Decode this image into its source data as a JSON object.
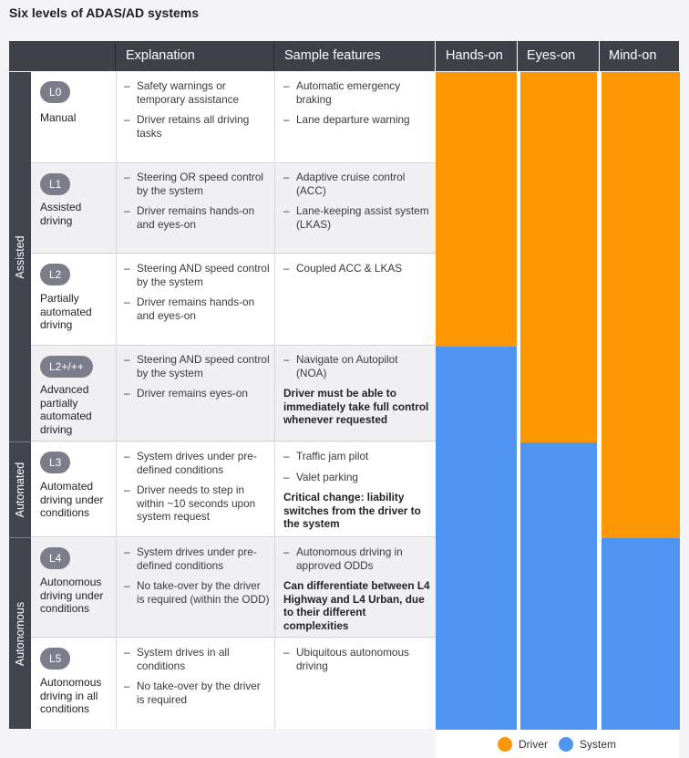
{
  "title": "Six levels of ADAS/AD systems",
  "header": {
    "explanation": "Explanation",
    "sample_features": "Sample features",
    "hands_on": "Hands-on",
    "eyes_on": "Eyes-on",
    "mind_on": "Mind-on"
  },
  "bands": {
    "assisted": "Assisted",
    "automated": "Automated",
    "autonomous": "Autonomous"
  },
  "colors": {
    "driver": "#fd9704",
    "system": "#4f94f0"
  },
  "levels": [
    {
      "badge": "L0",
      "name": "Manual",
      "explanation": [
        "Safety warnings or temporary assistance",
        "Driver retains all driving tasks"
      ],
      "features": [
        "Automatic emergency braking",
        "Lane departure warning"
      ],
      "note": "",
      "hands_on": "driver",
      "eyes_on": "driver",
      "mind_on": "driver"
    },
    {
      "badge": "L1",
      "name": "Assisted driving",
      "explanation": [
        "Steering OR speed control by the system",
        "Driver remains hands-on and eyes-on"
      ],
      "features": [
        "Adaptive cruise control (ACC)",
        "Lane-keeping assist system (LKAS)"
      ],
      "note": "",
      "hands_on": "driver",
      "eyes_on": "driver",
      "mind_on": "driver"
    },
    {
      "badge": "L2",
      "name": "Partially automated driving",
      "explanation": [
        "Steering AND speed control by the system",
        "Driver remains hands-on and eyes-on"
      ],
      "features": [
        "Coupled ACC & LKAS"
      ],
      "note": "",
      "hands_on": "driver",
      "eyes_on": "driver",
      "mind_on": "driver"
    },
    {
      "badge": "L2+/++",
      "name": "Advanced partially automated driving",
      "explanation": [
        "Steering AND speed control by the system",
        "Driver remains eyes-on"
      ],
      "features": [
        "Navigate on Autopilot (NOA)"
      ],
      "note": "Driver must be able to immediately take full control whenever requested",
      "hands_on": "system",
      "eyes_on": "driver",
      "mind_on": "driver"
    },
    {
      "badge": "L3",
      "name": "Automated driving under conditions",
      "explanation": [
        "System drives under pre-defined conditions",
        "Driver needs to step in within ~10 seconds upon system request"
      ],
      "features": [
        "Traffic jam pilot",
        "Valet parking"
      ],
      "note": "Critical change: liability switches from the driver to the system",
      "hands_on": "system",
      "eyes_on": "system",
      "mind_on": "driver"
    },
    {
      "badge": "L4",
      "name": "Autonomous driving under conditions",
      "explanation": [
        "System drives under pre-defined conditions",
        "No take-over by the driver is required (within the ODD)"
      ],
      "features": [
        "Autonomous driving in approved ODDs"
      ],
      "note": "Can differentiate between L4 Highway and L4 Urban, due to their different complexities",
      "hands_on": "system",
      "eyes_on": "system",
      "mind_on": "system"
    },
    {
      "badge": "L5",
      "name": "Autonomous driving in all conditions",
      "explanation": [
        "System drives in all conditions",
        "No take-over by the driver is required"
      ],
      "features": [
        "Ubiquitous autonomous driving"
      ],
      "note": "",
      "hands_on": "system",
      "eyes_on": "system",
      "mind_on": "system"
    }
  ],
  "legend": {
    "driver": "Driver",
    "system": "System"
  }
}
